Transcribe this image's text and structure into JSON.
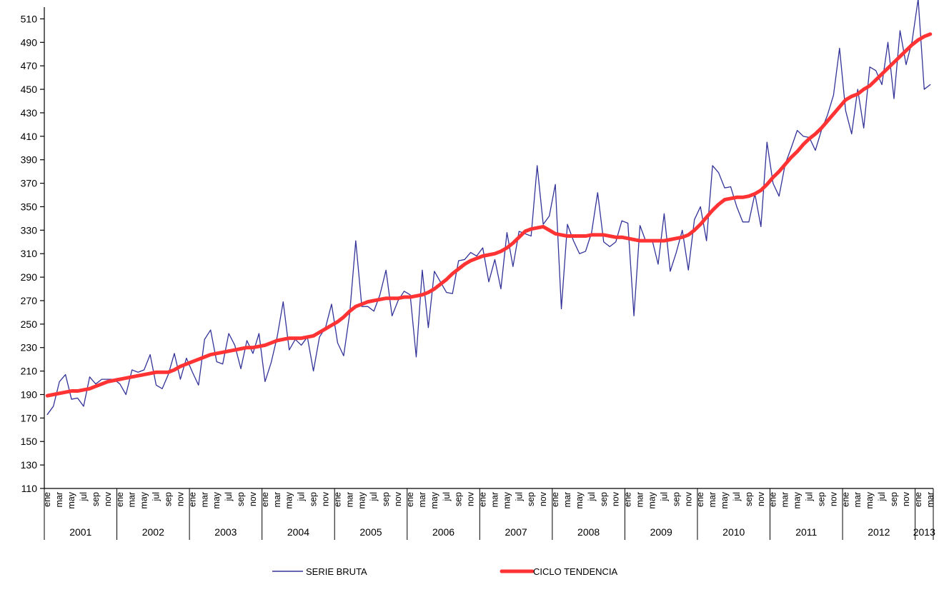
{
  "chart_data": {
    "type": "line",
    "title": "",
    "xlabel": "",
    "ylabel": "",
    "ylim": [
      110,
      520
    ],
    "y_ticks": [
      110,
      130,
      150,
      170,
      190,
      210,
      230,
      250,
      270,
      290,
      310,
      330,
      350,
      370,
      390,
      410,
      430,
      450,
      470,
      490,
      510
    ],
    "month_labels": [
      "ene",
      "mar",
      "may",
      "jul",
      "sep",
      "nov"
    ],
    "years": [
      "2001",
      "2002",
      "2003",
      "2004",
      "2005",
      "2006",
      "2007",
      "2008",
      "2009",
      "2010",
      "2011",
      "2012",
      "2013"
    ],
    "last_year_month_labels": [
      "ene",
      "mar"
    ],
    "n_months": 147,
    "grid": false,
    "legend_position": "bottom",
    "series": [
      {
        "name": "SERIE BRUTA",
        "color": "#333399",
        "values": [
          173,
          180,
          201,
          207,
          186,
          187,
          180,
          205,
          199,
          203,
          203,
          203,
          199,
          190,
          211,
          209,
          211,
          224,
          198,
          195,
          207,
          225,
          203,
          221,
          209,
          198,
          237,
          245,
          218,
          216,
          242,
          232,
          212,
          236,
          225,
          242,
          201,
          217,
          239,
          269,
          228,
          237,
          232,
          239,
          210,
          239,
          247,
          267,
          234,
          223,
          259,
          321,
          265,
          265,
          261,
          275,
          296,
          257,
          270,
          278,
          275,
          222,
          296,
          247,
          295,
          286,
          277,
          276,
          304,
          305,
          311,
          308,
          315,
          286,
          305,
          280,
          328,
          299,
          329,
          327,
          325,
          385,
          335,
          342,
          369,
          263,
          335,
          321,
          310,
          312,
          328,
          362,
          320,
          316,
          320,
          338,
          336,
          257,
          334,
          320,
          322,
          301,
          344,
          295,
          311,
          330,
          296,
          339,
          350,
          321,
          385,
          379,
          366,
          367,
          350,
          337,
          337,
          361,
          333,
          405,
          370,
          359,
          386,
          400,
          415,
          410,
          409,
          398,
          415,
          428,
          445,
          485,
          432,
          412,
          450,
          417,
          469,
          466,
          454,
          490,
          442,
          500,
          471,
          491,
          527,
          450,
          454
        ]
      },
      {
        "name": "CICLO TENDENCIA",
        "color": "#ff3333",
        "values": [
          189,
          190,
          191,
          192,
          193,
          193,
          194,
          195,
          197,
          199,
          201,
          202,
          203,
          204,
          205,
          206,
          207,
          208,
          209,
          209,
          209,
          211,
          214,
          216,
          218,
          220,
          222,
          224,
          225,
          226,
          227,
          228,
          229,
          230,
          230,
          231,
          232,
          234,
          236,
          237,
          238,
          238,
          238,
          239,
          240,
          243,
          246,
          249,
          252,
          256,
          261,
          265,
          267,
          269,
          270,
          271,
          272,
          272,
          272,
          273,
          273,
          274,
          275,
          277,
          280,
          284,
          288,
          293,
          297,
          301,
          304,
          306,
          308,
          309,
          310,
          312,
          315,
          319,
          324,
          329,
          331,
          332,
          333,
          330,
          327,
          326,
          325,
          325,
          325,
          325,
          326,
          326,
          326,
          325,
          324,
          324,
          323,
          322,
          321,
          321,
          321,
          321,
          321,
          322,
          323,
          324,
          326,
          330,
          335,
          341,
          347,
          352,
          356,
          357,
          358,
          358,
          359,
          361,
          364,
          369,
          375,
          380,
          386,
          392,
          397,
          403,
          408,
          412,
          417,
          423,
          429,
          435,
          441,
          444,
          446,
          450,
          453,
          458,
          463,
          468,
          473,
          478,
          483,
          488,
          492,
          495,
          497
        ]
      }
    ]
  }
}
